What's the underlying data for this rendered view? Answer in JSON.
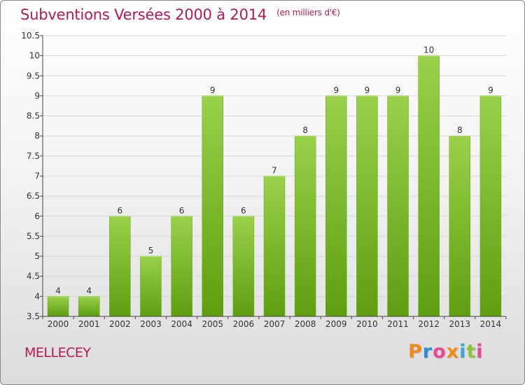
{
  "header": {
    "title": "Subventions Versées 2000 à 2014",
    "subtitle": "(en milliers d'€)"
  },
  "footer": {
    "commune": "MELLECEY",
    "logo": "Proxiti"
  },
  "logo_colors": [
    "#f08a1c",
    "#2f8ed8",
    "#e84a9a",
    "#f08a1c",
    "#3aa7d8",
    "#8cc63f",
    "#e84a9a"
  ],
  "colors": {
    "bar_top": "#9ad14a",
    "bar_bottom": "#5e9e10",
    "text_accent": "#b5185a",
    "axis": "#444444"
  },
  "chart_data": {
    "type": "bar",
    "categories": [
      "2000",
      "2001",
      "2002",
      "2003",
      "2004",
      "2005",
      "2006",
      "2007",
      "2008",
      "2009",
      "2010",
      "2011",
      "2012",
      "2013",
      "2014"
    ],
    "values": [
      4,
      4,
      6,
      5,
      6,
      9,
      6,
      7,
      8,
      9,
      9,
      9,
      10,
      8,
      9
    ],
    "value_labels": [
      "4",
      "4",
      "6",
      "5",
      "6",
      "9",
      "6",
      "7",
      "8",
      "9",
      "9",
      "9",
      "10",
      "8",
      "9"
    ],
    "ylim": [
      3.5,
      10.5
    ],
    "yticks": [
      3.5,
      4,
      4.5,
      5,
      5.5,
      6,
      6.5,
      7,
      7.5,
      8,
      8.5,
      9,
      9.5,
      10,
      10.5
    ],
    "ytick_labels": [
      "3.5",
      "4",
      "4.5",
      "5",
      "5.5",
      "6",
      "6.5",
      "7",
      "7.5",
      "8",
      "8.5",
      "9",
      "9.5",
      "10",
      "10.5"
    ],
    "grid": true,
    "legend": "none"
  }
}
